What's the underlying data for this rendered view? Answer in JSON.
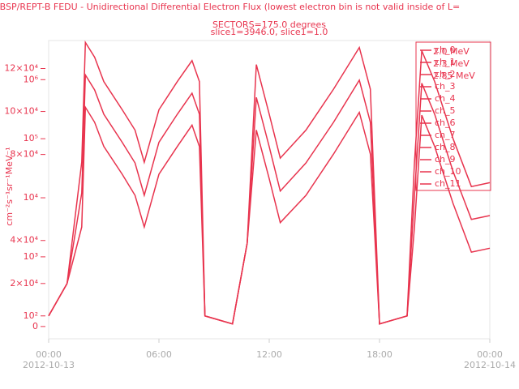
{
  "chart_data": {
    "type": "line",
    "title": "RBSP/REPT-B  FEDU - Unidirectional Differential Electron Flux (lowest electron bin is not valid inside of L=",
    "subtitles": [
      "SECTORS=175.0 degrees",
      "slice1=3946.0, slice1=1.0"
    ],
    "y_label": "cm⁻²s⁻¹sr⁻¹MeV⁻¹",
    "x": [
      0,
      1,
      1.8,
      2,
      2.5,
      3,
      4,
      4.7,
      5.2,
      6,
      7,
      7.8,
      8.2,
      8.5,
      10,
      10.8,
      11.3,
      12,
      12.6,
      14,
      15.5,
      16.9,
      17.5,
      18,
      19.5,
      19.9,
      20.3,
      21,
      22,
      23,
      24
    ],
    "xlim": [
      0,
      24
    ],
    "xticks": [
      {
        "value": 0,
        "label": "00:00"
      },
      {
        "value": 6,
        "label": "06:00"
      },
      {
        "value": 12,
        "label": "12:00"
      },
      {
        "value": 18,
        "label": "18:00"
      },
      {
        "value": 24,
        "label": "00:00"
      }
    ],
    "x_tick_dates": [
      {
        "value": 0,
        "label": "2012-10-13"
      },
      {
        "value": 24,
        "label": "2012-10-14"
      }
    ],
    "log_y": true,
    "ylim": [
      41,
      4600000
    ],
    "yticks": [
      {
        "value": 100,
        "label": "10²"
      },
      {
        "value": 1000,
        "label": "10³"
      },
      {
        "value": 10000,
        "label": "10⁴"
      },
      {
        "value": 100000,
        "label": "10⁵"
      },
      {
        "value": 1000000,
        "label": "10⁶"
      }
    ],
    "y2lim": [
      -5700,
      133000
    ],
    "y2ticks": [
      0,
      {
        "value": 20000,
        "label": "2×10⁴"
      },
      {
        "value": 40000,
        "label": "4×10⁴"
      },
      {
        "value": 80000,
        "label": "8×10⁴"
      },
      {
        "value": 100000,
        "label": "10×10⁴"
      },
      {
        "value": 120000,
        "label": "12×10⁴"
      }
    ],
    "series": [
      {
        "name": "ch_0",
        "energy": "2.0 MeV",
        "color": "#e8344e",
        "values": [
          100,
          353,
          40100,
          4270000,
          2400000,
          930000,
          310000,
          140000,
          40000,
          310000,
          930000,
          2100000,
          930000,
          100,
          73,
          1700,
          1800000,
          260000,
          47000,
          140000,
          690000,
          3500000,
          690000,
          73,
          100,
          40000,
          3100000,
          930000,
          100000,
          15500,
          18000
        ]
      },
      {
        "name": "ch_1",
        "energy": "2.3 MeV",
        "color": "#e8344e",
        "values": [
          100,
          353,
          12000,
          1200000,
          670000,
          260000,
          87000,
          39000,
          11000,
          87000,
          260000,
          590000,
          260000,
          100,
          73,
          1700,
          500000,
          73000,
          13000,
          39000,
          190000,
          980000,
          190000,
          73,
          100,
          11000,
          870000,
          260000,
          28000,
          4300,
          5000
        ]
      },
      {
        "name": "ch_2",
        "energy": "2.85 MeV",
        "color": "#e8344e",
        "values": [
          100,
          353,
          3200,
          340000,
          190000,
          74000,
          25000,
          11000,
          3200,
          25000,
          74000,
          170000,
          74000,
          100,
          73,
          1700,
          140000,
          21000,
          3800,
          11000,
          55000,
          280000,
          55000,
          73,
          100,
          3200,
          250000,
          74000,
          8000,
          1200,
          1400
        ]
      }
    ],
    "legend_extra": [
      "ch_3",
      "ch_4",
      "ch_5",
      "ch_6",
      "ch_7",
      "ch_8",
      "ch_9",
      "ch_10",
      "ch_11"
    ],
    "legend_color": "#e8344e"
  }
}
